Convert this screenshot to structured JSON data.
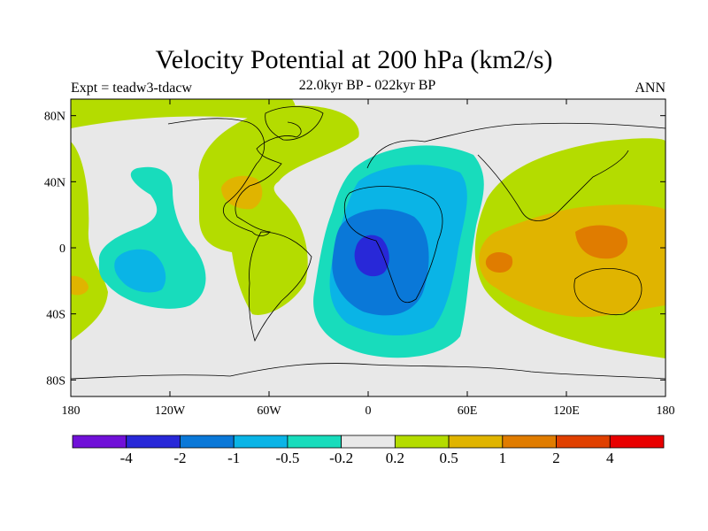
{
  "title": "Velocity Potential at 200 hPa (km2/s)",
  "subtitle": "22.0kyr BP - 022kyr BP",
  "experiment": "Expt = teadw3-tdacw",
  "season": "ANN",
  "chart_data": {
    "type": "heatmap",
    "projection": "cylindrical-equidistant",
    "lon_range": [
      -180,
      180
    ],
    "lat_range": [
      -90,
      90
    ],
    "x_ticks": [
      "180",
      "120W",
      "60W",
      "0",
      "60E",
      "120E",
      "180"
    ],
    "y_ticks": [
      "80N",
      "40N",
      "0",
      "40S",
      "80S"
    ],
    "colorbar_labels": [
      "-4",
      "-2",
      "-1",
      "-0.5",
      "-0.2",
      "0.2",
      "0.5",
      "1",
      "2",
      "4"
    ],
    "colorbar_colors": [
      "#7010d8",
      "#2828d8",
      "#0a78d8",
      "#0ab4e6",
      "#18dcbc",
      "#e8e8e8",
      "#b4dc00",
      "#e0b400",
      "#e07c00",
      "#e04000",
      "#e80000"
    ],
    "background_color": "#e8e8e8"
  }
}
